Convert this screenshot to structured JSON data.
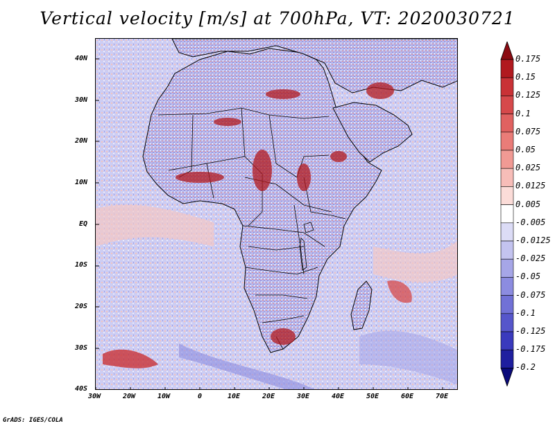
{
  "title": "Vertical velocity [m/s] at 700hPa, VT: 2020030721",
  "credit": "GrADS: IGES/COLA",
  "lat_labels": [
    "40N",
    "30N",
    "20N",
    "10N",
    "EQ",
    "10S",
    "20S",
    "30S",
    "40S"
  ],
  "lon_labels": [
    "30W",
    "20W",
    "10W",
    "0",
    "10E",
    "20E",
    "30E",
    "40E",
    "50E",
    "60E",
    "70E"
  ],
  "colorbar": {
    "labels": [
      "0.175",
      "0.15",
      "0.125",
      "0.1",
      "0.075",
      "0.05",
      "0.025",
      "0.0125",
      "0.005",
      "-0.005",
      "-0.0125",
      "-0.025",
      "-0.05",
      "-0.075",
      "-0.1",
      "-0.125",
      "-0.175",
      "-0.2"
    ],
    "colors": [
      "#8b0b12",
      "#b11a1f",
      "#c93236",
      "#d6494b",
      "#e06160",
      "#ea7c78",
      "#f19a94",
      "#f7bdb8",
      "#fbdcd8",
      "#ffffff",
      "#dcdcf6",
      "#c3c3ef",
      "#a6a6e7",
      "#8c8ce0",
      "#7171d6",
      "#5656cb",
      "#3a3abd",
      "#1f1f9f",
      "#0b0b7a"
    ]
  },
  "colors": {
    "ocean": "#d4d4f4",
    "land": "#bcbcee",
    "border": "#000000"
  }
}
